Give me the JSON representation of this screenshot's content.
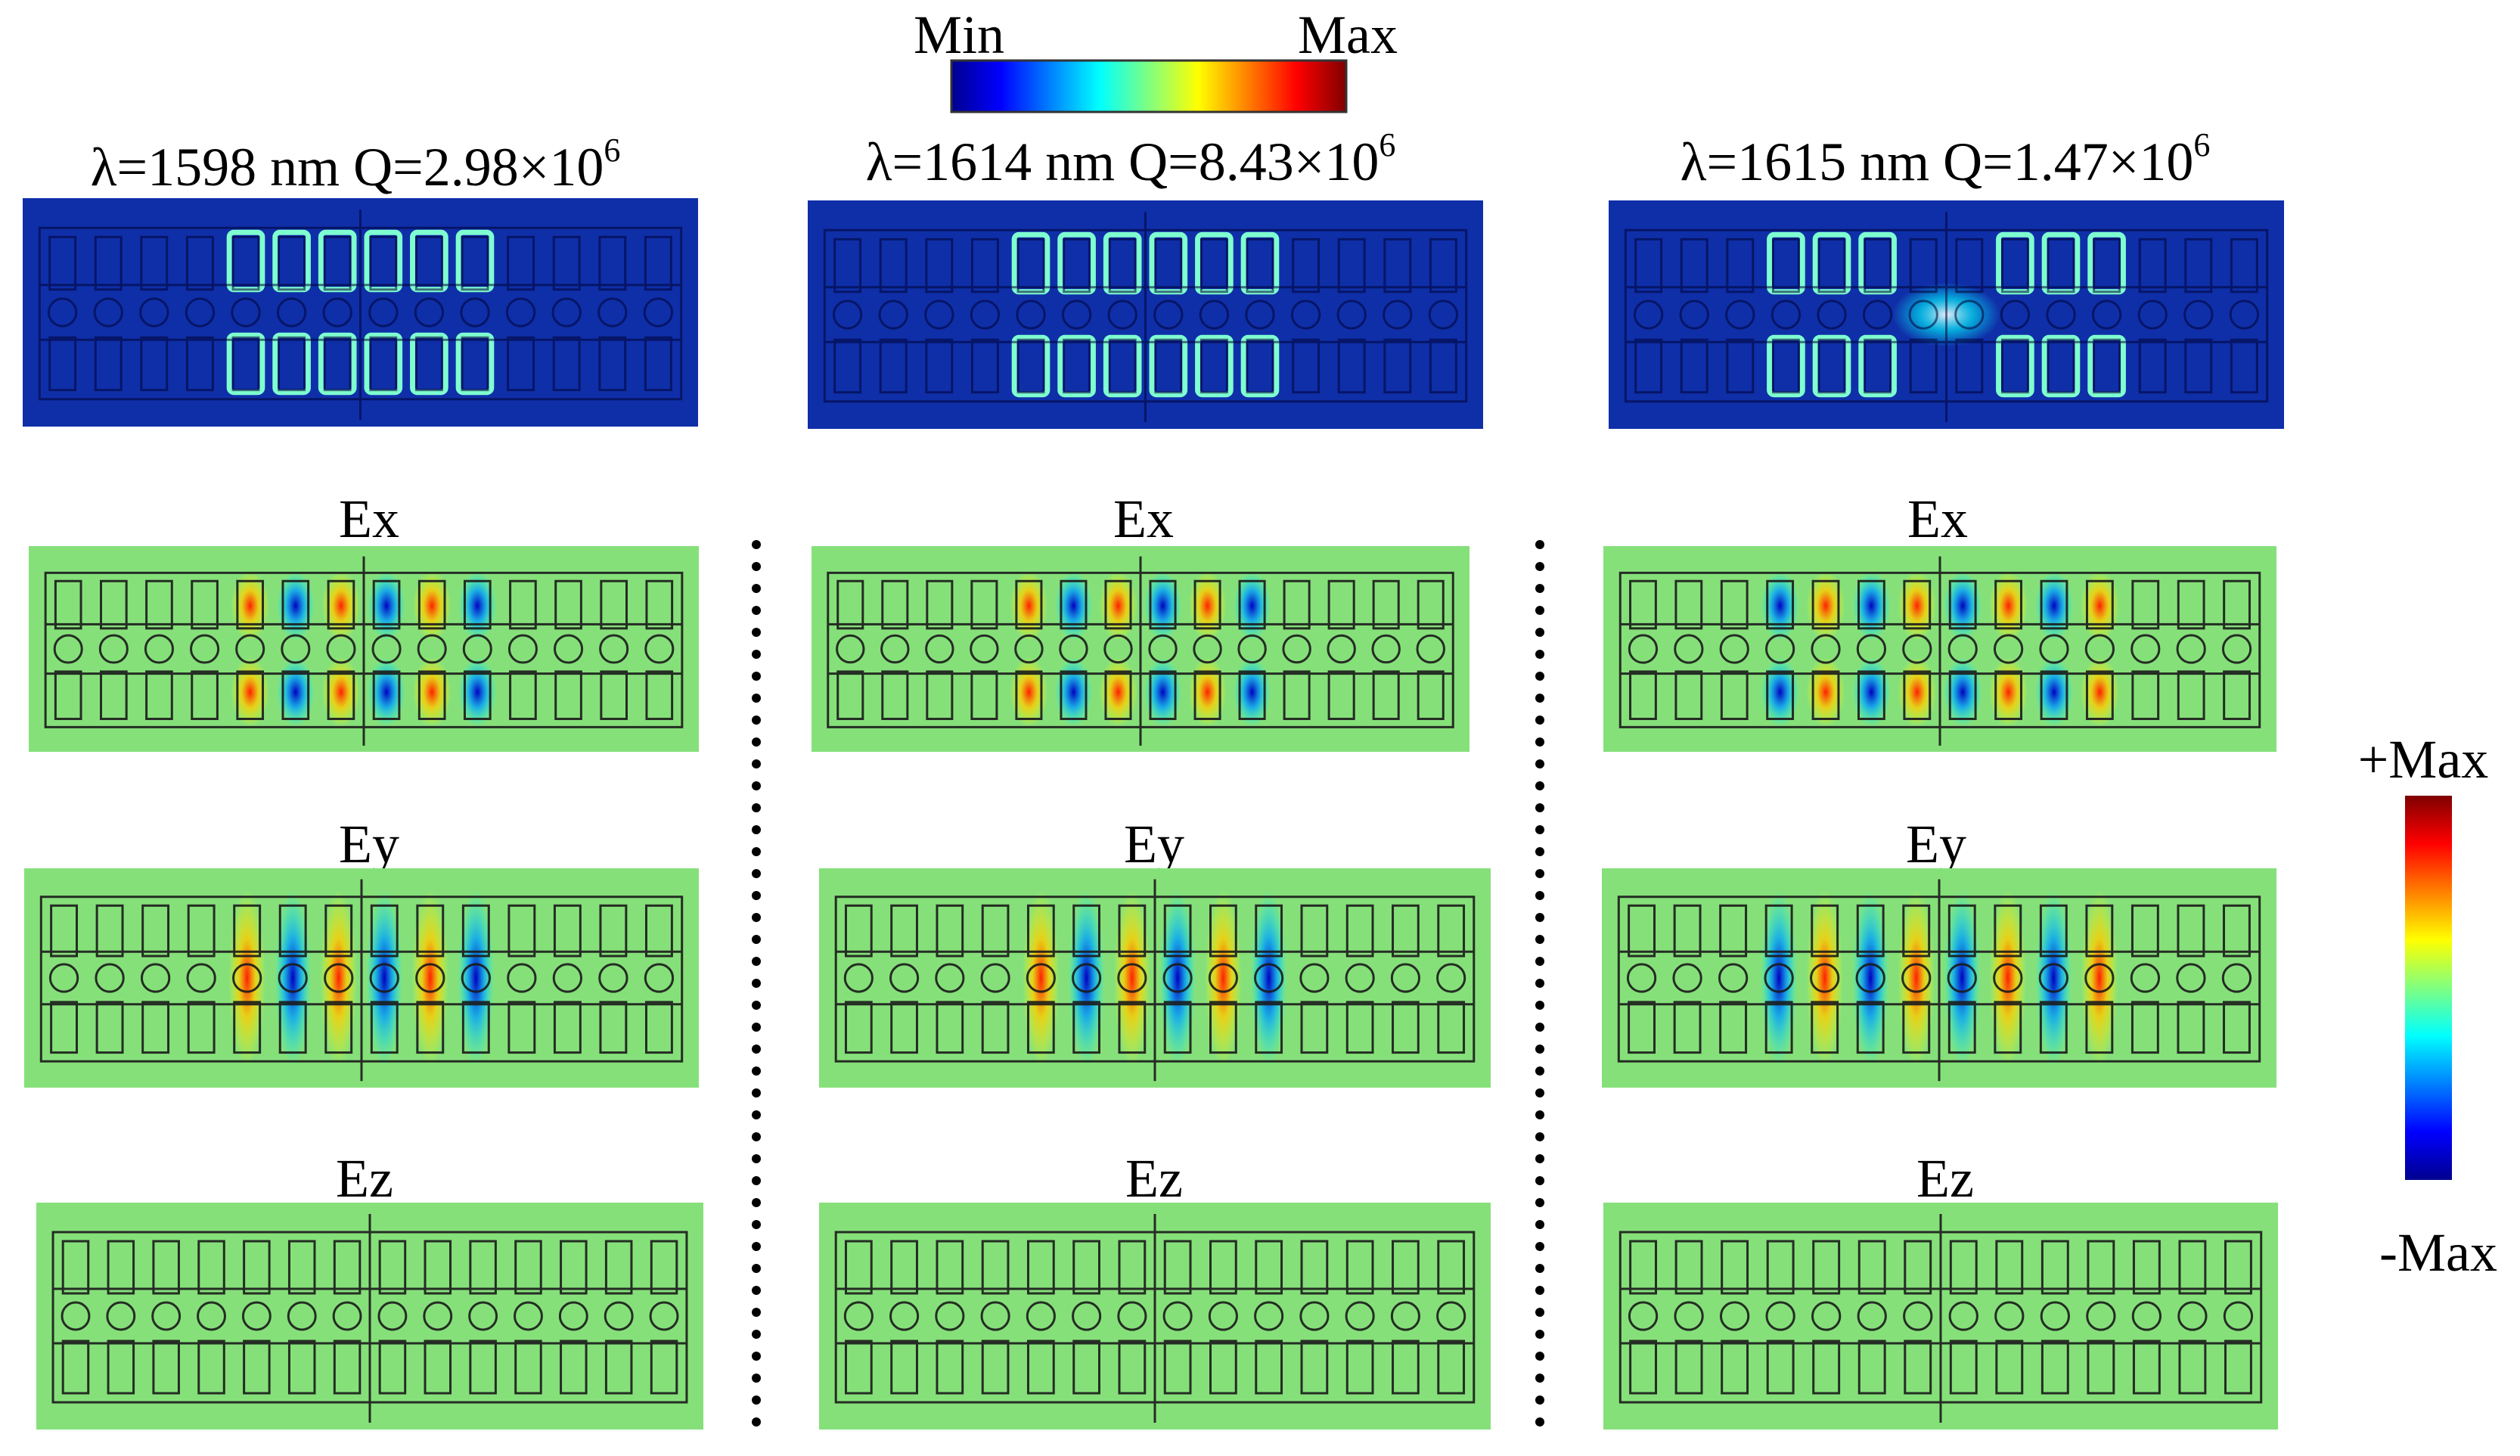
{
  "top_colorbar": {
    "min_label": "Min",
    "max_label": "Max",
    "colors": [
      "#00008f",
      "#0000ff",
      "#0080ff",
      "#00ffff",
      "#80ff80",
      "#ffff00",
      "#ff8000",
      "#ff0000",
      "#800000"
    ]
  },
  "side_colorbar": {
    "top_label": "+Max",
    "bottom_label": "-Max",
    "colors": [
      "#00008f",
      "#0000ff",
      "#0080ff",
      "#00ffff",
      "#80ff80",
      "#ffff00",
      "#ff8000",
      "#ff0000",
      "#800000"
    ]
  },
  "columns": [
    {
      "wavelength": "λ=1598 nm",
      "q": "Q=2.98×10",
      "q_exp": "6"
    },
    {
      "wavelength": "λ=1614 nm",
      "q": "Q=8.43×10",
      "q_exp": "6"
    },
    {
      "wavelength": "λ=1615 nm",
      "q": "Q=1.47×10",
      "q_exp": "6"
    }
  ],
  "components": [
    "Ex",
    "Ey",
    "Ez"
  ],
  "colors": {
    "field_background": "#86e07a",
    "intensity_background": "#0f2fa8",
    "outline": "#1a1a1a"
  }
}
